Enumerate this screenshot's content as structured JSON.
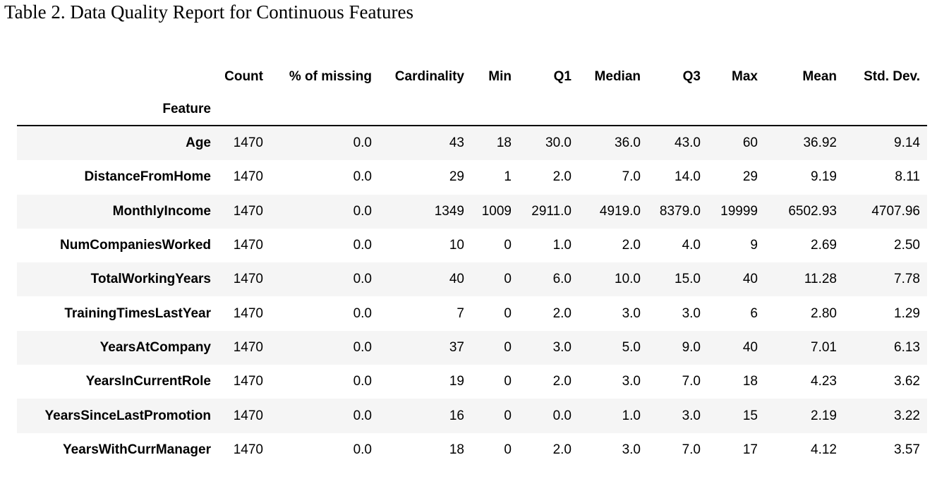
{
  "caption": "Table 2. Data Quality Report for Continuous Features",
  "table": {
    "index_name": "Feature",
    "columns": [
      "Count",
      "% of missing",
      "Cardinality",
      "Min",
      "Q1",
      "Median",
      "Q3",
      "Max",
      "Mean",
      "Std. Dev."
    ],
    "rows": [
      {
        "feature": "Age",
        "values": [
          "1470",
          "0.0",
          "43",
          "18",
          "30.0",
          "36.0",
          "43.0",
          "60",
          "36.92",
          "9.14"
        ]
      },
      {
        "feature": "DistanceFromHome",
        "values": [
          "1470",
          "0.0",
          "29",
          "1",
          "2.0",
          "7.0",
          "14.0",
          "29",
          "9.19",
          "8.11"
        ]
      },
      {
        "feature": "MonthlyIncome",
        "values": [
          "1470",
          "0.0",
          "1349",
          "1009",
          "2911.0",
          "4919.0",
          "8379.0",
          "19999",
          "6502.93",
          "4707.96"
        ]
      },
      {
        "feature": "NumCompaniesWorked",
        "values": [
          "1470",
          "0.0",
          "10",
          "0",
          "1.0",
          "2.0",
          "4.0",
          "9",
          "2.69",
          "2.50"
        ]
      },
      {
        "feature": "TotalWorkingYears",
        "values": [
          "1470",
          "0.0",
          "40",
          "0",
          "6.0",
          "10.0",
          "15.0",
          "40",
          "11.28",
          "7.78"
        ]
      },
      {
        "feature": "TrainingTimesLastYear",
        "values": [
          "1470",
          "0.0",
          "7",
          "0",
          "2.0",
          "3.0",
          "3.0",
          "6",
          "2.80",
          "1.29"
        ]
      },
      {
        "feature": "YearsAtCompany",
        "values": [
          "1470",
          "0.0",
          "37",
          "0",
          "3.0",
          "5.0",
          "9.0",
          "40",
          "7.01",
          "6.13"
        ]
      },
      {
        "feature": "YearsInCurrentRole",
        "values": [
          "1470",
          "0.0",
          "19",
          "0",
          "2.0",
          "3.0",
          "7.0",
          "18",
          "4.23",
          "3.62"
        ]
      },
      {
        "feature": "YearsSinceLastPromotion",
        "values": [
          "1470",
          "0.0",
          "16",
          "0",
          "0.0",
          "1.0",
          "3.0",
          "15",
          "2.19",
          "3.22"
        ]
      },
      {
        "feature": "YearsWithCurrManager",
        "values": [
          "1470",
          "0.0",
          "18",
          "0",
          "2.0",
          "3.0",
          "7.0",
          "17",
          "4.12",
          "3.57"
        ]
      }
    ]
  }
}
